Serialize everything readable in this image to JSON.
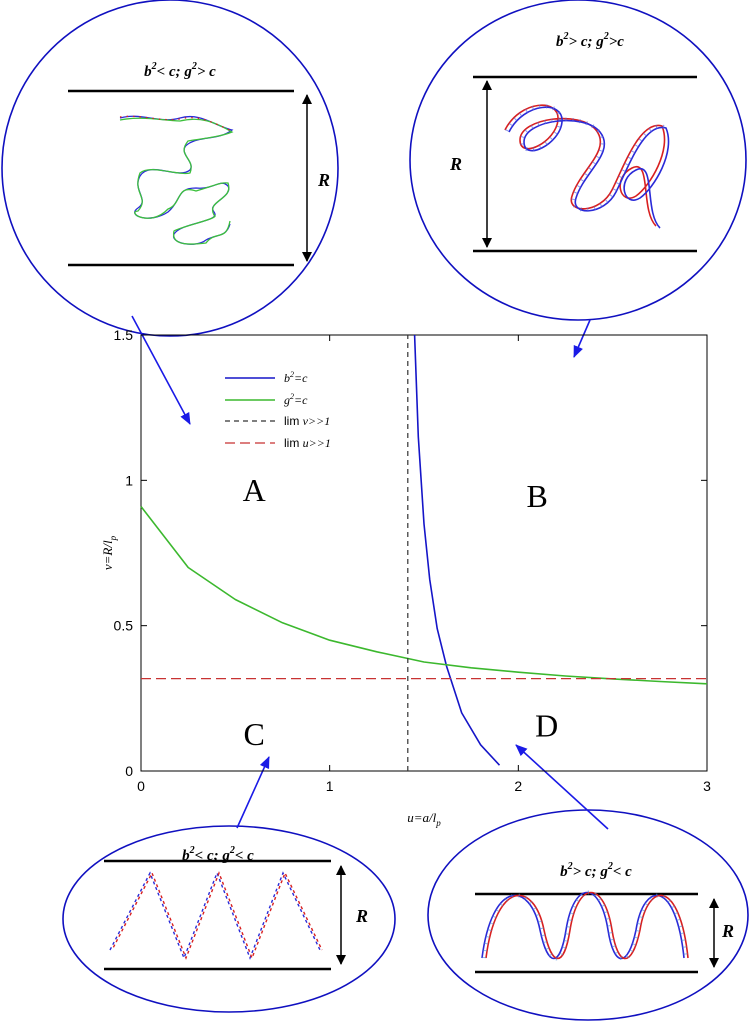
{
  "chart_data": {
    "type": "line",
    "xlabel": "u=a/l_p",
    "ylabel": "v=R/l_p",
    "xlim": [
      0,
      3
    ],
    "ylim": [
      0,
      1.5
    ],
    "x_ticks": [
      "0",
      "1",
      "2",
      "3"
    ],
    "y_ticks": [
      "0",
      "0.5",
      "1",
      "1.5"
    ],
    "grid": false,
    "legend_position": "top-left",
    "series": [
      {
        "name": "b²=c",
        "style": "solid",
        "color": "#1515c8",
        "x": [
          1.45,
          1.47,
          1.5,
          1.53,
          1.57,
          1.62,
          1.7,
          1.8,
          1.9
        ],
        "y": [
          1.5,
          1.15,
          0.85,
          0.66,
          0.49,
          0.36,
          0.2,
          0.09,
          0.02
        ]
      },
      {
        "name": "g²=c",
        "style": "solid",
        "color": "#3cb82e",
        "x": [
          0.0,
          0.25,
          0.5,
          0.75,
          1.0,
          1.25,
          1.5,
          1.75,
          2.0,
          2.25,
          2.5,
          2.75,
          3.0
        ],
        "y": [
          0.91,
          0.7,
          0.59,
          0.51,
          0.45,
          0.41,
          0.375,
          0.355,
          0.34,
          0.327,
          0.317,
          0.308,
          0.3
        ]
      },
      {
        "name": "lim v>>1",
        "style": "dashed",
        "color": "#333333",
        "x": [
          1.414,
          1.414
        ],
        "y": [
          0,
          1.5
        ]
      },
      {
        "name": "lim u>>1",
        "style": "dashed",
        "color": "#c83232",
        "x": [
          0,
          3
        ],
        "y": [
          0.318,
          0.318
        ]
      }
    ],
    "annotations": [
      {
        "text": "A",
        "x": 0.6,
        "y": 0.97
      },
      {
        "text": "B",
        "x": 2.1,
        "y": 0.95
      },
      {
        "text": "C",
        "x": 0.6,
        "y": 0.13
      },
      {
        "text": "D",
        "x": 2.15,
        "y": 0.16
      }
    ]
  },
  "insets": {
    "A": {
      "condition": "b²< c; g²> c",
      "height_label": "R"
    },
    "B": {
      "condition": "b²> c; g²>c",
      "height_label": "R"
    },
    "C": {
      "condition": "b²< c; g²< c",
      "height_label": "R"
    },
    "D": {
      "condition": "b²> c; g²< c",
      "height_label": "R"
    }
  },
  "colors": {
    "pointer": "#1a1ae6",
    "ellipse": "#1010c0",
    "helix_blue": "#2a2ad8",
    "helix_red": "#d82020",
    "helix_green": "#3cc03c"
  }
}
